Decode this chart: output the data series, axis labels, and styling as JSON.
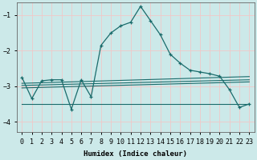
{
  "xlabel": "Humidex (Indice chaleur)",
  "xlim": [
    -0.5,
    23.5
  ],
  "ylim": [
    -4.3,
    -0.65
  ],
  "yticks": [
    -4,
    -3,
    -2,
    -1
  ],
  "xticks": [
    0,
    1,
    2,
    3,
    4,
    5,
    6,
    7,
    8,
    9,
    10,
    11,
    12,
    13,
    14,
    15,
    16,
    17,
    18,
    19,
    20,
    21,
    22,
    23
  ],
  "bg_color": "#cce9e9",
  "grid_color": "#f0c8c8",
  "line_color": "#1a6b6b",
  "line1_x": [
    0,
    1,
    2,
    3,
    4,
    5,
    6,
    7,
    8,
    9,
    10,
    11,
    12,
    13,
    14,
    15,
    16,
    17,
    18,
    19,
    20,
    21,
    22,
    23
  ],
  "line1_y": [
    -2.75,
    -3.35,
    -2.85,
    -2.82,
    -2.82,
    -3.65,
    -2.82,
    -3.3,
    -1.85,
    -1.5,
    -1.3,
    -1.2,
    -0.75,
    -1.15,
    -1.55,
    -2.1,
    -2.35,
    -2.55,
    -2.6,
    -2.65,
    -2.72,
    -3.1,
    -3.6,
    -3.5
  ],
  "line2_x": [
    0,
    23
  ],
  "line2_y": [
    -2.92,
    -2.73
  ],
  "line3_x": [
    0,
    23
  ],
  "line3_y": [
    -2.98,
    -2.82
  ],
  "line4_x": [
    0,
    23
  ],
  "line4_y": [
    -3.05,
    -2.88
  ],
  "line5_x": [
    0,
    23
  ],
  "line5_y": [
    -3.5,
    -3.5
  ]
}
